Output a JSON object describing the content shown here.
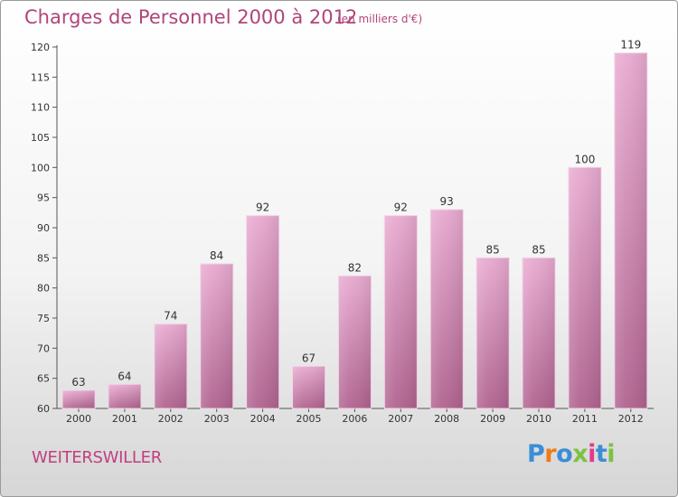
{
  "header": {
    "title": "Charges de Personnel 2000 à 2012",
    "subtitle": "(en milliers d'€)"
  },
  "footer": {
    "commune": "WEITERSWILLER",
    "logo_text": "Proxiti"
  },
  "colors": {
    "title": "#b0457a",
    "bar_top": "#e8aad0",
    "bar_bottom": "#b0638f",
    "logo_letters": [
      "#3a8ed6",
      "#f07b1b",
      "#3a8ed6",
      "#7cc242",
      "#e23a8e",
      "#3a8ed6",
      "#7cc242"
    ]
  },
  "chart_data": {
    "type": "bar",
    "title": "Charges de Personnel 2000 à 2012",
    "subtitle": "(en milliers d'€)",
    "categories": [
      "2000",
      "2001",
      "2002",
      "2003",
      "2004",
      "2005",
      "2006",
      "2007",
      "2008",
      "2009",
      "2010",
      "2011",
      "2012"
    ],
    "values": [
      63,
      64,
      74,
      84,
      92,
      67,
      82,
      92,
      93,
      85,
      85,
      100,
      119
    ],
    "ylim": [
      60,
      120
    ],
    "yticks": [
      60,
      65,
      70,
      75,
      80,
      85,
      90,
      95,
      100,
      105,
      110,
      115,
      120
    ],
    "grid": false,
    "data_labels": true
  }
}
